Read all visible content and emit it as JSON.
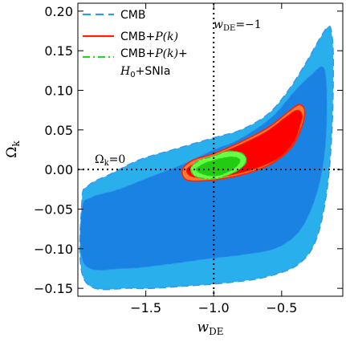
{
  "chart_data": {
    "type": "area",
    "xlabel": "wDE",
    "xlabel_main": "w",
    "xlabel_sub": "DE",
    "ylabel": "Ωk",
    "ylabel_main": "Ω",
    "ylabel_sub": "k",
    "xlim": [
      -2.0,
      -0.05
    ],
    "ylim": [
      -0.16,
      0.21
    ],
    "xticks": [
      -1.5,
      -1.0,
      -0.5
    ],
    "xtick_labels": [
      "−1.5",
      "−1.0",
      "−0.5"
    ],
    "yticks": [
      -0.15,
      -0.1,
      -0.05,
      0.0,
      0.05,
      0.1,
      0.15,
      0.2
    ],
    "ytick_labels": [
      "−0.15",
      "−0.10",
      "−0.05",
      "0.00",
      "0.05",
      "0.10",
      "0.15",
      "0.20"
    ],
    "grid": false,
    "legend_position": "top-left",
    "reference_lines": [
      {
        "orientation": "vertical",
        "value": -1.0,
        "label": "wDE = −1",
        "label_main": "w",
        "label_sub": "DE",
        "label_rest": "=−1"
      },
      {
        "orientation": "horizontal",
        "value": 0.0,
        "label": "Ωk = 0",
        "label_main": "Ω",
        "label_sub": "k",
        "label_rest": "=0"
      }
    ],
    "series": [
      {
        "name": "CMB",
        "legend_label": "CMB",
        "line_style": "dashed",
        "line_color": "#3399ee",
        "contours": [
          {
            "level": "outer",
            "color": "#29b0ec",
            "points": [
              [
                -1.97,
                -0.04
              ],
              [
                -1.95,
                -0.14
              ],
              [
                -1.6,
                -0.15
              ],
              [
                -1.2,
                -0.147
              ],
              [
                -0.85,
                -0.142
              ],
              [
                -0.6,
                -0.135
              ],
              [
                -0.38,
                -0.12
              ],
              [
                -0.25,
                -0.09
              ],
              [
                -0.17,
                -0.03
              ],
              [
                -0.13,
                0.05
              ],
              [
                -0.12,
                0.14
              ],
              [
                -0.135,
                0.175
              ],
              [
                -0.16,
                0.18
              ],
              [
                -0.22,
                0.165
              ],
              [
                -0.32,
                0.135
              ],
              [
                -0.45,
                0.1
              ],
              [
                -0.6,
                0.07
              ],
              [
                -0.8,
                0.05
              ],
              [
                -1.0,
                0.04
              ],
              [
                -1.3,
                0.025
              ],
              [
                -1.55,
                0.012
              ],
              [
                -1.75,
                -0.005
              ],
              [
                -1.92,
                -0.02
              ]
            ]
          },
          {
            "level": "inner",
            "color": "#1a82e2",
            "points": [
              [
                -1.97,
                -0.05
              ],
              [
                -1.95,
                -0.12
              ],
              [
                -1.65,
                -0.125
              ],
              [
                -1.35,
                -0.12
              ],
              [
                -1.05,
                -0.113
              ],
              [
                -0.8,
                -0.108
              ],
              [
                -0.55,
                -0.1
              ],
              [
                -0.38,
                -0.08
              ],
              [
                -0.27,
                -0.045
              ],
              [
                -0.2,
                0.0
              ],
              [
                -0.17,
                0.05
              ],
              [
                -0.17,
                0.11
              ],
              [
                -0.2,
                0.13
              ],
              [
                -0.28,
                0.12
              ],
              [
                -0.4,
                0.1
              ],
              [
                -0.55,
                0.07
              ],
              [
                -0.7,
                0.05
              ],
              [
                -0.85,
                0.035
              ],
              [
                -1.0,
                0.025
              ],
              [
                -1.25,
                0.005
              ],
              [
                -1.45,
                -0.008
              ],
              [
                -1.7,
                -0.025
              ],
              [
                -1.9,
                -0.035
              ]
            ]
          }
        ]
      },
      {
        "name": "CMB+P(k)",
        "legend_label_parts": [
          "CMB+",
          "P(k)"
        ],
        "line_style": "solid",
        "line_color": "#ff2200",
        "contours": [
          {
            "level": "outer",
            "color": "#ff7a33",
            "points": [
              [
                -1.23,
                0.0
              ],
              [
                -1.2,
                -0.013
              ],
              [
                -1.05,
                -0.014
              ],
              [
                -0.88,
                -0.01
              ],
              [
                -0.7,
                -0.002
              ],
              [
                -0.55,
                0.01
              ],
              [
                -0.42,
                0.03
              ],
              [
                -0.35,
                0.055
              ],
              [
                -0.33,
                0.074
              ],
              [
                -0.37,
                0.082
              ],
              [
                -0.45,
                0.073
              ],
              [
                -0.6,
                0.053
              ],
              [
                -0.8,
                0.035
              ],
              [
                -1.0,
                0.02
              ],
              [
                -1.15,
                0.012
              ]
            ]
          },
          {
            "level": "inner",
            "color": "#ff0000",
            "points": [
              [
                -1.2,
                0.0
              ],
              [
                -1.16,
                -0.009
              ],
              [
                -1.02,
                -0.01
              ],
              [
                -0.85,
                -0.006
              ],
              [
                -0.68,
                0.002
              ],
              [
                -0.52,
                0.015
              ],
              [
                -0.41,
                0.035
              ],
              [
                -0.36,
                0.058
              ],
              [
                -0.35,
                0.07
              ],
              [
                -0.39,
                0.075
              ],
              [
                -0.47,
                0.066
              ],
              [
                -0.62,
                0.047
              ],
              [
                -0.82,
                0.03
              ],
              [
                -1.0,
                0.017
              ],
              [
                -1.13,
                0.008
              ]
            ]
          }
        ]
      },
      {
        "name": "CMB+P(k)+H0+SNIa",
        "legend_label_line1_parts": [
          "CMB+",
          "P(k)",
          "+"
        ],
        "legend_label_line2_parts": [
          "H",
          "0",
          "+SNIa"
        ],
        "line_style": "dash-dot",
        "line_color": "#33cc33",
        "contours": [
          {
            "level": "outer",
            "color": "#66ff44",
            "points": [
              [
                -1.17,
                0.0
              ],
              [
                -1.13,
                -0.009
              ],
              [
                -1.0,
                -0.012
              ],
              [
                -0.88,
                -0.006
              ],
              [
                -0.79,
                0.003
              ],
              [
                -0.76,
                0.013
              ],
              [
                -0.8,
                0.021
              ],
              [
                -0.9,
                0.023
              ],
              [
                -1.0,
                0.017
              ],
              [
                -1.1,
                0.012
              ],
              [
                -1.15,
                0.006
              ]
            ]
          },
          {
            "level": "inner",
            "color": "#22cc11",
            "points": [
              [
                -1.13,
                0.0
              ],
              [
                -1.08,
                -0.006
              ],
              [
                -0.98,
                -0.008
              ],
              [
                -0.88,
                -0.002
              ],
              [
                -0.82,
                0.006
              ],
              [
                -0.81,
                0.013
              ],
              [
                -0.86,
                0.016
              ],
              [
                -0.95,
                0.014
              ],
              [
                -1.05,
                0.009
              ],
              [
                -1.1,
                0.005
              ]
            ]
          }
        ]
      }
    ]
  }
}
